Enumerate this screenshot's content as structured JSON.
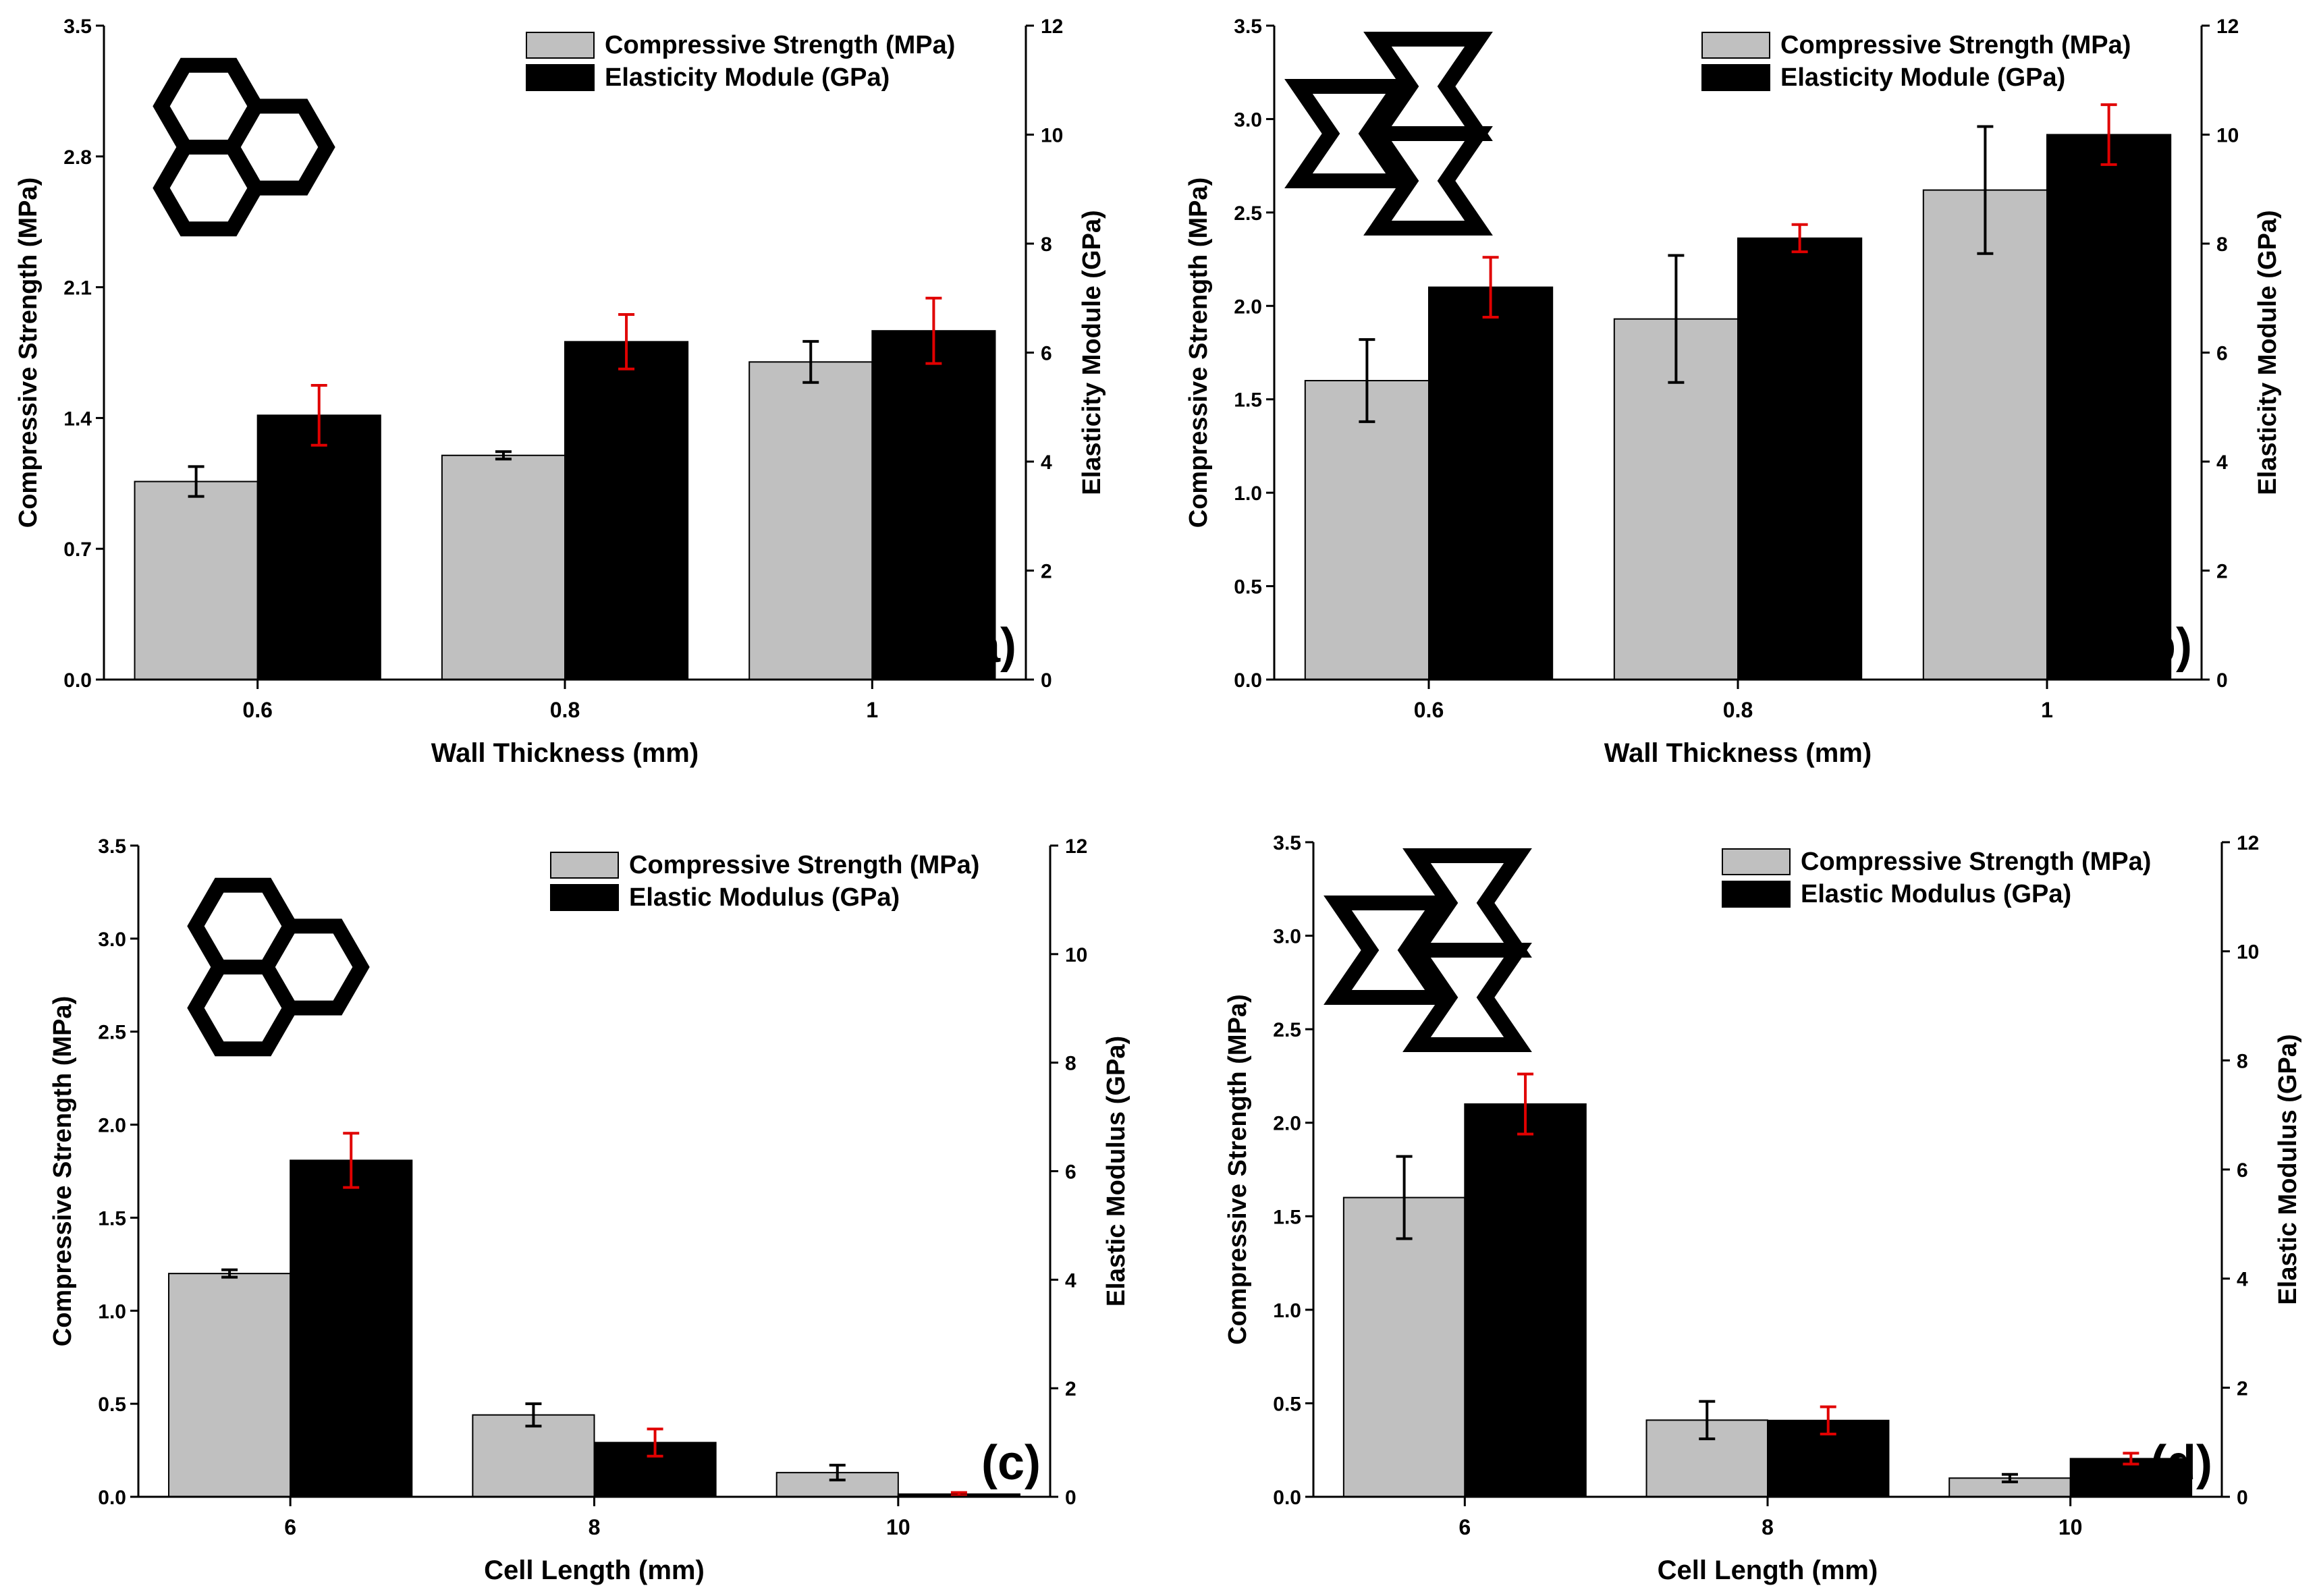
{
  "colors": {
    "strength_bar": "#c0c0c0",
    "modulus_bar": "#000000",
    "strength_error": "#000000",
    "modulus_error": "#e00000",
    "axis": "#000000"
  },
  "chart_data": [
    {
      "type": "bar",
      "panel_label": "(a)",
      "icon": "honeycomb-icon",
      "xlabel": "Wall Thickness (mm)",
      "ylabel_left": "Compressive Strength (MPa)",
      "ylabel_right": "Elasticity Module (GPa)",
      "categories": [
        "0.6",
        "0.8",
        "1"
      ],
      "ylim_left": [
        0,
        3.5
      ],
      "ylim_right": [
        0,
        12
      ],
      "yticks_left": [
        "0.0",
        "0.7",
        "1.4",
        "2.1",
        "2.8",
        "3.5"
      ],
      "yticks_right": [
        "0",
        "2",
        "4",
        "6",
        "8",
        "10",
        "12"
      ],
      "legend": [
        "Compressive Strength (MPa)",
        "Elasticity Module (GPa)"
      ],
      "series": [
        {
          "name": "Compressive Strength (MPa)",
          "axis": "left",
          "values": [
            1.06,
            1.2,
            1.7
          ],
          "errors": [
            0.08,
            0.02,
            0.11
          ]
        },
        {
          "name": "Elasticity Module (GPa)",
          "axis": "right",
          "values": [
            4.85,
            6.2,
            6.4
          ],
          "errors": [
            0.55,
            0.5,
            0.6
          ]
        }
      ]
    },
    {
      "type": "bar",
      "panel_label": "(b)",
      "icon": "reentrant-icon",
      "xlabel": "Wall Thickness (mm)",
      "ylabel_left": "Compressive Strength (MPa)",
      "ylabel_right": "Elasticity Module (GPa)",
      "categories": [
        "0.6",
        "0.8",
        "1"
      ],
      "ylim_left": [
        0,
        3.5
      ],
      "ylim_right": [
        0,
        12
      ],
      "yticks_left": [
        "0.0",
        "0.5",
        "1.0",
        "1.5",
        "2.0",
        "2.5",
        "3.0",
        "3.5"
      ],
      "yticks_right": [
        "0",
        "2",
        "4",
        "6",
        "8",
        "10",
        "12"
      ],
      "legend": [
        "Compressive Strength (MPa)",
        "Elasticity Module (GPa)"
      ],
      "series": [
        {
          "name": "Compressive Strength (MPa)",
          "axis": "left",
          "values": [
            1.6,
            1.93,
            2.62
          ],
          "errors": [
            0.22,
            0.34,
            0.34
          ]
        },
        {
          "name": "Elasticity Module (GPa)",
          "axis": "right",
          "values": [
            7.2,
            8.1,
            10.0
          ],
          "errors": [
            0.55,
            0.25,
            0.55
          ]
        }
      ]
    },
    {
      "type": "bar",
      "panel_label": "(c)",
      "icon": "honeycomb-icon",
      "xlabel": "Cell Length (mm)",
      "ylabel_left": "Compressive Strength (MPa)",
      "ylabel_right": "Elastic Modulus (GPa)",
      "categories": [
        "6",
        "8",
        "10"
      ],
      "ylim_left": [
        0,
        3.5
      ],
      "ylim_right": [
        0,
        12
      ],
      "yticks_left": [
        "0.0",
        "0.5",
        "1.0",
        "1.5",
        "2.0",
        "2.5",
        "3.0",
        "3.5"
      ],
      "yticks_right": [
        "0",
        "2",
        "4",
        "6",
        "8",
        "10",
        "12"
      ],
      "legend": [
        "Compressive Strength (MPa)",
        "Elastic Modulus (GPa)"
      ],
      "series": [
        {
          "name": "Compressive Strength (MPa)",
          "axis": "left",
          "values": [
            1.2,
            0.44,
            0.13
          ],
          "errors": [
            0.02,
            0.06,
            0.04
          ]
        },
        {
          "name": "Elastic Modulus (GPa)",
          "axis": "right",
          "values": [
            6.2,
            1.0,
            0.05
          ],
          "errors": [
            0.5,
            0.25,
            0.03
          ]
        }
      ]
    },
    {
      "type": "bar",
      "panel_label": "(d)",
      "icon": "reentrant-icon",
      "xlabel": "Cell Length (mm)",
      "ylabel_left": "Compressive Strength (MPa)",
      "ylabel_right": "Elastic Modulus (GPa)",
      "categories": [
        "6",
        "8",
        "10"
      ],
      "ylim_left": [
        0,
        3.5
      ],
      "ylim_right": [
        0,
        12
      ],
      "yticks_left": [
        "0.0",
        "0.5",
        "1.0",
        "1.5",
        "2.0",
        "2.5",
        "3.0",
        "3.5"
      ],
      "yticks_right": [
        "0",
        "2",
        "4",
        "6",
        "8",
        "10",
        "12"
      ],
      "legend": [
        "Compressive Strength (MPa)",
        "Elastic Modulus (GPa)"
      ],
      "series": [
        {
          "name": "Compressive Strength (MPa)",
          "axis": "left",
          "values": [
            1.6,
            0.41,
            0.1
          ],
          "errors": [
            0.22,
            0.1,
            0.02
          ]
        },
        {
          "name": "Elastic Modulus (GPa)",
          "axis": "right",
          "values": [
            7.2,
            1.4,
            0.7
          ],
          "errors": [
            0.55,
            0.25,
            0.1
          ]
        }
      ]
    }
  ]
}
